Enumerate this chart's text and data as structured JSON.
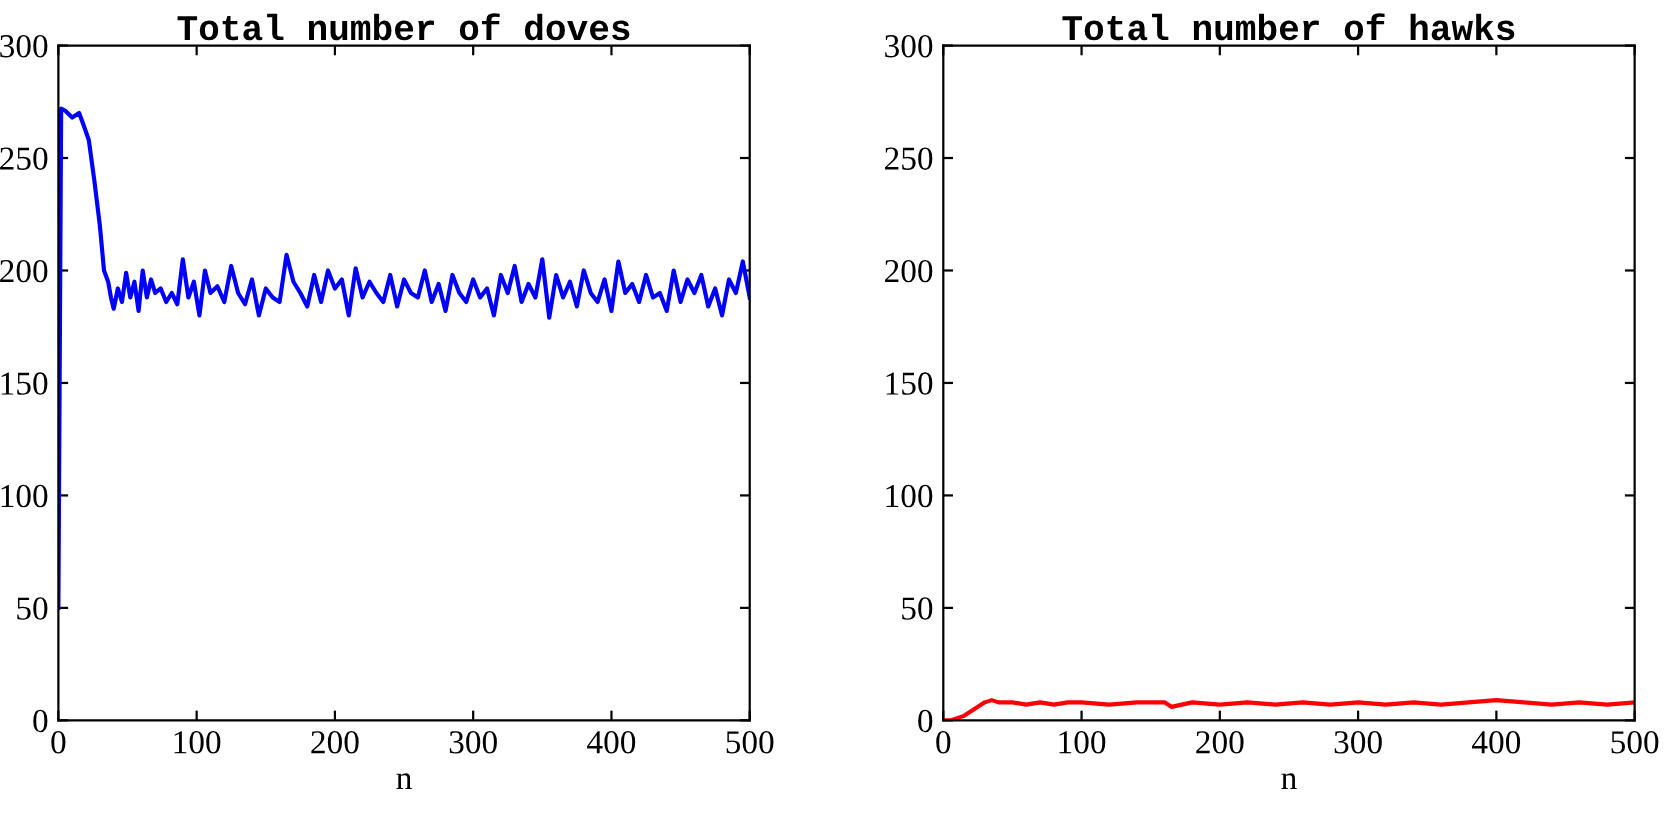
{
  "chart_data": [
    {
      "type": "line",
      "title": "Total number of doves",
      "xlabel": "n",
      "series": [
        {
          "color": "#0000ff",
          "x": [
            0,
            2,
            5,
            10,
            15,
            18,
            22,
            26,
            30,
            33,
            36,
            38,
            40,
            43,
            46,
            49,
            52,
            55,
            58,
            61,
            64,
            67,
            70,
            74,
            78,
            82,
            86,
            90,
            94,
            98,
            102,
            106,
            110,
            115,
            120,
            125,
            130,
            135,
            140,
            145,
            150,
            155,
            160,
            165,
            170,
            175,
            180,
            185,
            190,
            195,
            200,
            205,
            210,
            215,
            220,
            225,
            230,
            235,
            240,
            245,
            250,
            255,
            260,
            265,
            270,
            275,
            280,
            285,
            290,
            295,
            300,
            305,
            310,
            315,
            320,
            325,
            330,
            335,
            340,
            345,
            350,
            355,
            360,
            365,
            370,
            375,
            380,
            385,
            390,
            395,
            400,
            405,
            410,
            415,
            420,
            425,
            430,
            435,
            440,
            445,
            450,
            455,
            460,
            465,
            470,
            475,
            480,
            485,
            490,
            495,
            500
          ],
          "values": [
            50,
            272,
            271,
            268,
            270,
            265,
            258,
            240,
            220,
            200,
            195,
            188,
            183,
            192,
            186,
            199,
            188,
            195,
            182,
            200,
            188,
            196,
            190,
            192,
            186,
            190,
            185,
            205,
            188,
            195,
            180,
            200,
            190,
            193,
            186,
            202,
            190,
            185,
            196,
            180,
            192,
            188,
            186,
            207,
            195,
            190,
            184,
            198,
            186,
            200,
            192,
            196,
            180,
            201,
            188,
            195,
            190,
            186,
            198,
            184,
            196,
            190,
            188,
            200,
            186,
            194,
            182,
            198,
            190,
            186,
            196,
            188,
            192,
            180,
            198,
            190,
            202,
            186,
            194,
            188,
            205,
            179,
            198,
            188,
            195,
            184,
            200,
            190,
            186,
            196,
            182,
            204,
            190,
            194,
            186,
            198,
            188,
            190,
            182,
            200,
            186,
            196,
            190,
            198,
            184,
            192,
            180,
            196,
            190,
            204,
            188
          ]
        }
      ],
      "xlim": [
        0,
        500
      ],
      "ylim": [
        0,
        300
      ],
      "xticks": [
        0,
        100,
        200,
        300,
        400,
        500
      ],
      "yticks": [
        0,
        50,
        100,
        150,
        200,
        250,
        300
      ],
      "grid": false
    },
    {
      "type": "line",
      "title": "Total number of hawks",
      "xlabel": "n",
      "series": [
        {
          "color": "#ff0000",
          "x": [
            0,
            5,
            10,
            15,
            20,
            25,
            30,
            35,
            40,
            50,
            60,
            70,
            80,
            90,
            100,
            120,
            140,
            160,
            165,
            180,
            200,
            220,
            240,
            260,
            280,
            300,
            320,
            340,
            360,
            380,
            400,
            420,
            440,
            460,
            480,
            500
          ],
          "values": [
            0,
            0,
            1,
            2,
            4,
            6,
            8,
            9,
            8,
            8,
            7,
            8,
            7,
            8,
            8,
            7,
            8,
            8,
            6,
            8,
            7,
            8,
            7,
            8,
            7,
            8,
            7,
            8,
            7,
            8,
            9,
            8,
            7,
            8,
            7,
            8
          ]
        }
      ],
      "xlim": [
        0,
        500
      ],
      "ylim": [
        0,
        300
      ],
      "xticks": [
        0,
        100,
        200,
        300,
        400,
        500
      ],
      "yticks": [
        0,
        50,
        100,
        150,
        200,
        250,
        300
      ],
      "grid": false
    }
  ]
}
